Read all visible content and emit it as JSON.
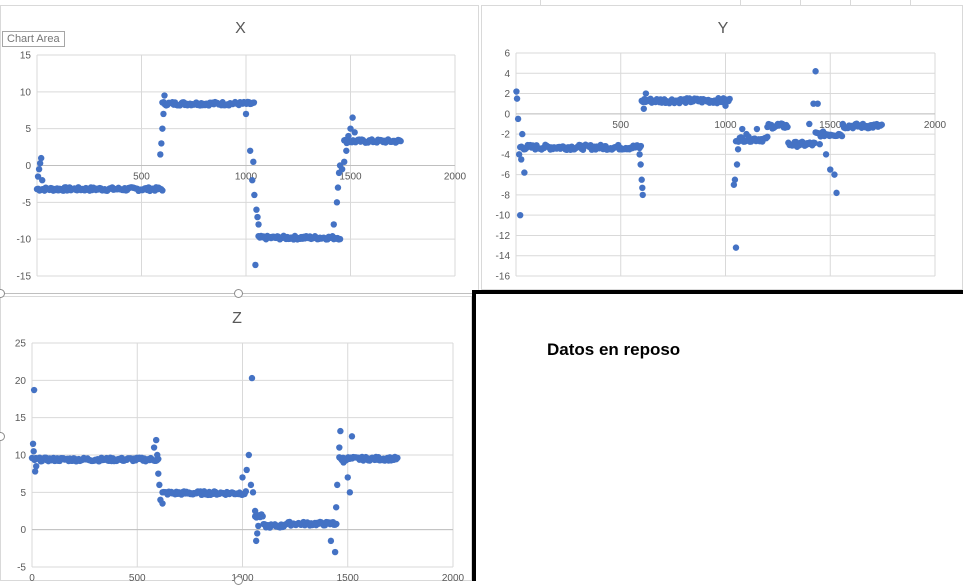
{
  "colors": {
    "series": "#4472C4",
    "grid": "#d9d9d9",
    "text": "#595959"
  },
  "tooltip": "Chart Area",
  "note": "Datos en reposo",
  "chart_data": [
    {
      "type": "scatter",
      "title": "X",
      "xlim": [
        0,
        2000
      ],
      "ylim": [
        -15,
        15
      ],
      "xticks": [
        500,
        1000,
        1500,
        2000
      ],
      "yticks": [
        -15,
        -10,
        -5,
        0,
        5,
        10,
        15
      ],
      "grid": true,
      "series": [
        {
          "segments": [
            [
              0,
              600,
              -3.2
            ],
            [
              600,
              1040,
              8.4
            ],
            [
              1060,
              1450,
              -9.8
            ],
            [
              1470,
              1740,
              3.3
            ]
          ],
          "points": [
            [
              5,
              -1.5
            ],
            [
              10,
              -0.5
            ],
            [
              15,
              0.3
            ],
            [
              20,
              1.0
            ],
            [
              25,
              -2.0
            ],
            [
              590,
              1.5
            ],
            [
              595,
              3.0
            ],
            [
              600,
              5.0
            ],
            [
              605,
              7.0
            ],
            [
              610,
              9.5
            ],
            [
              1000,
              7.0
            ],
            [
              1020,
              2.0
            ],
            [
              1030,
              -2.0
            ],
            [
              1035,
              0.5
            ],
            [
              1040,
              -4.0
            ],
            [
              1045,
              -13.5
            ],
            [
              1050,
              -6.0
            ],
            [
              1055,
              -7.0
            ],
            [
              1060,
              -8.0
            ],
            [
              1420,
              -8.0
            ],
            [
              1435,
              -5.0
            ],
            [
              1440,
              -3.0
            ],
            [
              1445,
              -1.0
            ],
            [
              1450,
              0.0
            ],
            [
              1460,
              -0.5
            ],
            [
              1470,
              0.5
            ],
            [
              1480,
              2.0
            ],
            [
              1490,
              4.0
            ],
            [
              1500,
              5.0
            ],
            [
              1510,
              6.5
            ],
            [
              1520,
              4.5
            ]
          ]
        }
      ]
    },
    {
      "type": "scatter",
      "title": "Y",
      "xlim": [
        0,
        2000
      ],
      "ylim": [
        -16,
        6
      ],
      "xticks": [
        500,
        1000,
        1500,
        2000
      ],
      "yticks": [
        -16,
        -14,
        -12,
        -10,
        -8,
        -6,
        -4,
        -2,
        0,
        2,
        4,
        6
      ],
      "grid": true,
      "series": [
        {
          "segments": [
            [
              20,
              600,
              -3.3
            ],
            [
              600,
              1020,
              1.3
            ],
            [
              1050,
              1200,
              -2.5
            ],
            [
              1200,
              1300,
              -1.2
            ],
            [
              1300,
              1430,
              -3.0
            ],
            [
              1430,
              1560,
              -2.0
            ],
            [
              1560,
              1750,
              -1.2
            ]
          ],
          "points": [
            [
              2,
              2.2
            ],
            [
              5,
              1.5
            ],
            [
              10,
              -0.5
            ],
            [
              15,
              -4.0
            ],
            [
              20,
              -10.0
            ],
            [
              25,
              -4.5
            ],
            [
              30,
              -2.0
            ],
            [
              40,
              -5.8
            ],
            [
              590,
              -4.0
            ],
            [
              595,
              -5.0
            ],
            [
              600,
              -6.5
            ],
            [
              603,
              -7.3
            ],
            [
              605,
              -8.0
            ],
            [
              610,
              0.5
            ],
            [
              620,
              2.0
            ],
            [
              1000,
              0.8
            ],
            [
              1040,
              -7.0
            ],
            [
              1045,
              -6.5
            ],
            [
              1050,
              -13.2
            ],
            [
              1055,
              -5.0
            ],
            [
              1060,
              -3.5
            ],
            [
              1080,
              -1.5
            ],
            [
              1100,
              -2.0
            ],
            [
              1150,
              -1.5
            ],
            [
              1250,
              -1.0
            ],
            [
              1400,
              -1.0
            ],
            [
              1420,
              1.0
            ],
            [
              1430,
              4.2
            ],
            [
              1440,
              1.0
            ],
            [
              1450,
              -3.0
            ],
            [
              1480,
              -4.0
            ],
            [
              1500,
              -5.5
            ],
            [
              1520,
              -6.0
            ],
            [
              1530,
              -7.8
            ],
            [
              1540,
              -2.0
            ],
            [
              1560,
              -1.0
            ]
          ]
        }
      ]
    },
    {
      "type": "scatter",
      "title": "Z",
      "xlim": [
        0,
        2000
      ],
      "ylim": [
        -5,
        25
      ],
      "xticks": [
        0,
        500,
        1000,
        1500,
        2000
      ],
      "yticks": [
        -5,
        0,
        5,
        10,
        15,
        20,
        25
      ],
      "grid": true,
      "series": [
        {
          "segments": [
            [
              0,
              600,
              9.4
            ],
            [
              620,
              1020,
              4.9
            ],
            [
              1060,
              1100,
              1.8
            ],
            [
              1100,
              1200,
              0.5
            ],
            [
              1200,
              1450,
              0.8
            ],
            [
              1460,
              1740,
              9.5
            ]
          ],
          "points": [
            [
              5,
              11.5
            ],
            [
              8,
              10.5
            ],
            [
              10,
              18.7
            ],
            [
              15,
              7.8
            ],
            [
              20,
              8.5
            ],
            [
              580,
              11.0
            ],
            [
              590,
              12.0
            ],
            [
              595,
              10.0
            ],
            [
              600,
              7.5
            ],
            [
              605,
              6.0
            ],
            [
              610,
              4.0
            ],
            [
              620,
              3.5
            ],
            [
              1000,
              7.0
            ],
            [
              1020,
              8.0
            ],
            [
              1030,
              10.0
            ],
            [
              1040,
              6.0
            ],
            [
              1045,
              20.3
            ],
            [
              1050,
              5.0
            ],
            [
              1060,
              2.5
            ],
            [
              1065,
              -1.5
            ],
            [
              1070,
              -0.5
            ],
            [
              1075,
              0.5
            ],
            [
              1420,
              -1.5
            ],
            [
              1430,
              1.0
            ],
            [
              1440,
              -3.0
            ],
            [
              1445,
              3.0
            ],
            [
              1450,
              6.0
            ],
            [
              1460,
              11.0
            ],
            [
              1465,
              13.2
            ],
            [
              1480,
              9.0
            ],
            [
              1500,
              7.0
            ],
            [
              1510,
              5.0
            ],
            [
              1520,
              12.5
            ]
          ]
        }
      ]
    }
  ]
}
